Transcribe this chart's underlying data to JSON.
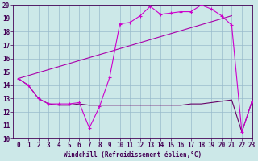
{
  "xlabel": "Windchill (Refroidissement éolien,°C)",
  "bg_color": "#cce8e8",
  "grid_color": "#99bbcc",
  "line1_x": [
    0,
    1,
    2,
    3,
    4,
    5,
    6,
    7,
    8,
    9,
    10,
    11,
    12,
    13,
    14,
    15,
    16,
    17,
    18,
    19,
    20,
    21,
    22,
    23
  ],
  "line1_y": [
    14.5,
    14.0,
    13.0,
    12.6,
    12.6,
    12.6,
    12.7,
    10.8,
    12.4,
    14.6,
    18.6,
    18.7,
    19.2,
    19.9,
    19.3,
    19.4,
    19.5,
    19.5,
    20.0,
    19.7,
    19.2,
    18.5,
    10.5,
    12.8
  ],
  "line2_x": [
    0,
    1,
    2,
    3,
    4,
    5,
    6,
    7,
    8,
    9,
    10,
    11,
    12,
    13,
    14,
    15,
    16,
    17,
    18,
    19,
    20,
    21,
    22,
    23
  ],
  "line2_y": [
    14.5,
    14.0,
    13.0,
    12.6,
    12.5,
    12.5,
    12.6,
    12.5,
    12.5,
    12.5,
    12.5,
    12.5,
    12.5,
    12.5,
    12.5,
    12.5,
    12.5,
    12.6,
    12.6,
    12.7,
    12.8,
    12.9,
    10.5,
    12.8
  ],
  "line3_x": [
    0,
    21
  ],
  "line3_y": [
    14.5,
    19.2
  ],
  "line_color1": "#cc00cc",
  "line_color2": "#660066",
  "line_color3": "#aa00aa",
  "ylim": [
    10,
    20
  ],
  "xlim": [
    -0.5,
    23
  ],
  "yticks": [
    10,
    11,
    12,
    13,
    14,
    15,
    16,
    17,
    18,
    19,
    20
  ],
  "xticks": [
    0,
    1,
    2,
    3,
    4,
    5,
    6,
    7,
    8,
    9,
    10,
    11,
    12,
    13,
    14,
    15,
    16,
    17,
    18,
    19,
    20,
    21,
    22,
    23
  ],
  "tick_fontsize": 5.5,
  "xlabel_fontsize": 5.5,
  "label_color": "#440055"
}
